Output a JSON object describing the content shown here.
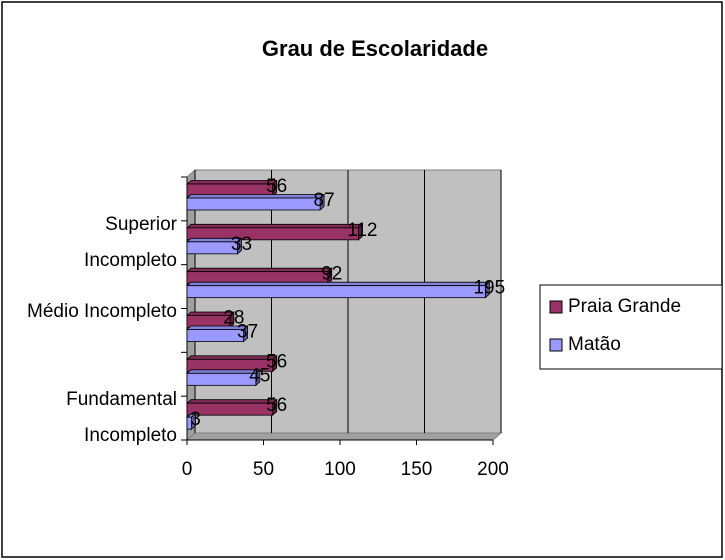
{
  "chart_data": {
    "type": "bar3d_horizontal",
    "title": "Grau de Escolaridade",
    "categories": [
      "Fundamental Incompleto",
      null,
      "Médio Incompleto",
      null,
      "Superior Incompleto",
      null
    ],
    "series": [
      {
        "name": "Praia Grande",
        "color": "#993366",
        "values": [
          56,
          56,
          28,
          92,
          112,
          56
        ]
      },
      {
        "name": "Matão",
        "color": "#9999ff",
        "values": [
          3,
          45,
          37,
          195,
          33,
          87
        ]
      }
    ],
    "xlim": [
      0,
      200
    ],
    "xticks": [
      0,
      50,
      100,
      150,
      200
    ],
    "grid": true,
    "legend": "right"
  }
}
